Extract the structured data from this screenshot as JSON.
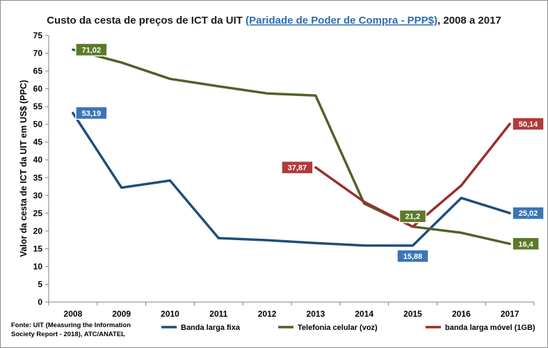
{
  "title_prefix": "Custo da cesta de preços de ICT da UIT ",
  "title_link": "(Paridade de Poder de Compra - PPP$)",
  "title_suffix": ", 2008 a 2017",
  "source_line1": "Fonte: UIT (Measuring the Information",
  "source_line2": "Society Report - 2018), ATC/ANATEL",
  "chart_data": {
    "type": "line",
    "x": [
      "2008",
      "2009",
      "2010",
      "2011",
      "2012",
      "2013",
      "2014",
      "2015",
      "2016",
      "2017"
    ],
    "ylabel": "Valor da cesta de ICT da UIT em US$ (PPC)",
    "xlabel": "",
    "ylim": [
      0,
      75
    ],
    "yticks": [
      0,
      5,
      10,
      15,
      20,
      25,
      30,
      35,
      40,
      45,
      50,
      55,
      60,
      65,
      70,
      75
    ],
    "grid": false,
    "legend_position": "bottom",
    "series": [
      {
        "name": "Banda larga fixa",
        "color": "#1f4e79",
        "label_color": "#3a75b5",
        "values": [
          53.19,
          32.2,
          34.2,
          18.0,
          17.4,
          16.6,
          15.9,
          15.88,
          29.3,
          25.02
        ],
        "labels": [
          {
            "index": 0,
            "text": "53,19",
            "place": "right"
          },
          {
            "index": 7,
            "text": "15,88",
            "place": "below"
          },
          {
            "index": 9,
            "text": "25,02",
            "place": "right"
          }
        ]
      },
      {
        "name": "Telefonia celular (voz)",
        "color": "#4f6228",
        "label_color": "#5c7a2a",
        "values": [
          71.02,
          67.4,
          62.8,
          60.7,
          58.7,
          58.1,
          27.7,
          21.2,
          19.5,
          16.4
        ],
        "labels": [
          {
            "index": 0,
            "text": "71,02",
            "place": "right"
          },
          {
            "index": 7,
            "text": "21,2",
            "place": "above"
          },
          {
            "index": 9,
            "text": "16,4",
            "place": "right"
          }
        ]
      },
      {
        "name": "banda larga móvel (1GB)",
        "color": "#9b2d2d",
        "label_color": "#b23a3a",
        "values": [
          null,
          null,
          null,
          null,
          null,
          37.87,
          28.2,
          21.2,
          32.8,
          50.14
        ],
        "labels": [
          {
            "index": 5,
            "text": "37,87",
            "place": "left"
          },
          {
            "index": 9,
            "text": "50,14",
            "place": "right"
          }
        ]
      }
    ]
  }
}
